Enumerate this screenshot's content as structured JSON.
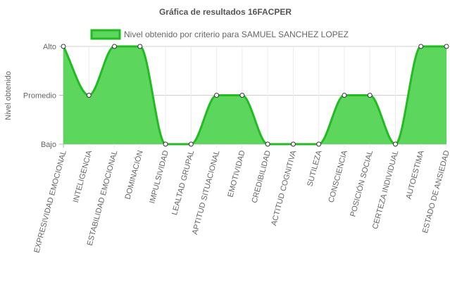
{
  "chart_data": {
    "type": "area",
    "title": "Gráfica de resultados 16FACPER",
    "ylabel": "Nivel obtenido",
    "xlabel": "",
    "y_categories": [
      "Bajo",
      "Promedio",
      "Alto"
    ],
    "ylim": [
      0,
      2
    ],
    "grid": true,
    "legend_position": "top",
    "categories": [
      "EXPRESIVIDAD EMOCIONAL",
      "INTELIGENCIA",
      "ESTABILIDAD EMOCIONAL",
      "DOMINACIÓN",
      "IMPULSIVIDAD",
      "LEALTAD GRUPAL",
      "APTITUD SITUACIONAL",
      "EMOTIVIDAD",
      "CREDIBILIDAD",
      "ACTITUD COGNITIVA",
      "SUTILEZA",
      "CONSCIENCIA",
      "POSICIÓN SOCIAL",
      "CERTEZA INDIVIDUAL",
      "AUTOESTIMA",
      "ESTADO DE ANSIEDAD"
    ],
    "series": [
      {
        "name": "Nivel obtenido por criterio para SAMUEL SANCHEZ LOPEZ",
        "values": [
          2,
          1,
          2,
          2,
          0,
          0,
          1,
          1,
          0,
          0,
          0,
          1,
          1,
          0,
          2,
          2
        ],
        "fill_color": "#5cd65c",
        "line_color": "#22bb22"
      }
    ]
  }
}
